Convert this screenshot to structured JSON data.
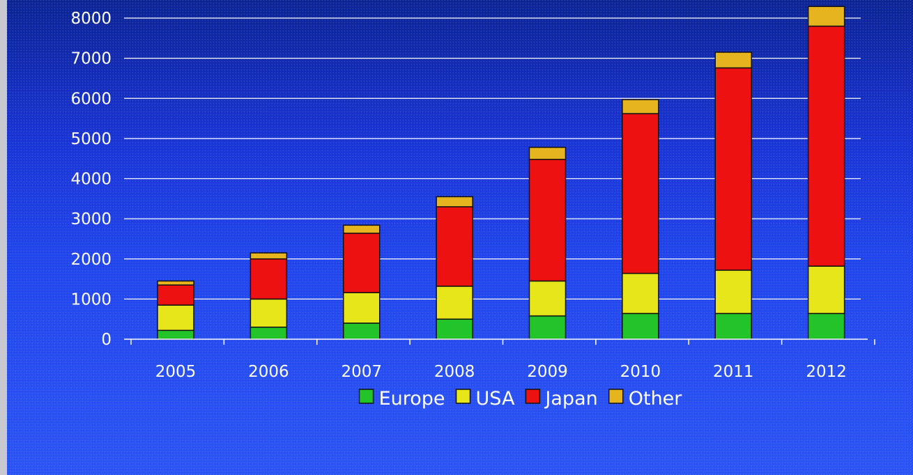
{
  "chart_data": {
    "type": "bar",
    "stacked": true,
    "categories": [
      "2005",
      "2006",
      "2007",
      "2008",
      "2009",
      "2010",
      "2011",
      "2012"
    ],
    "series": [
      {
        "name": "Europe",
        "color": "#22c42a",
        "values": [
          220,
          300,
          400,
          500,
          580,
          640,
          640,
          640
        ]
      },
      {
        "name": "USA",
        "color": "#e6e61a",
        "values": [
          630,
          700,
          760,
          820,
          870,
          1000,
          1080,
          1180
        ]
      },
      {
        "name": "Japan",
        "color": "#ee1111",
        "values": [
          500,
          1000,
          1480,
          1980,
          3030,
          3980,
          5040,
          5980
        ]
      },
      {
        "name": "Other",
        "color": "#e6b41e",
        "values": [
          100,
          150,
          200,
          250,
          300,
          350,
          390,
          490
        ]
      }
    ],
    "yticks": [
      0,
      1000,
      2000,
      3000,
      4000,
      5000,
      6000,
      7000,
      8000
    ],
    "ylim": [
      0,
      8000
    ],
    "grid": true,
    "legend": "bottom"
  }
}
